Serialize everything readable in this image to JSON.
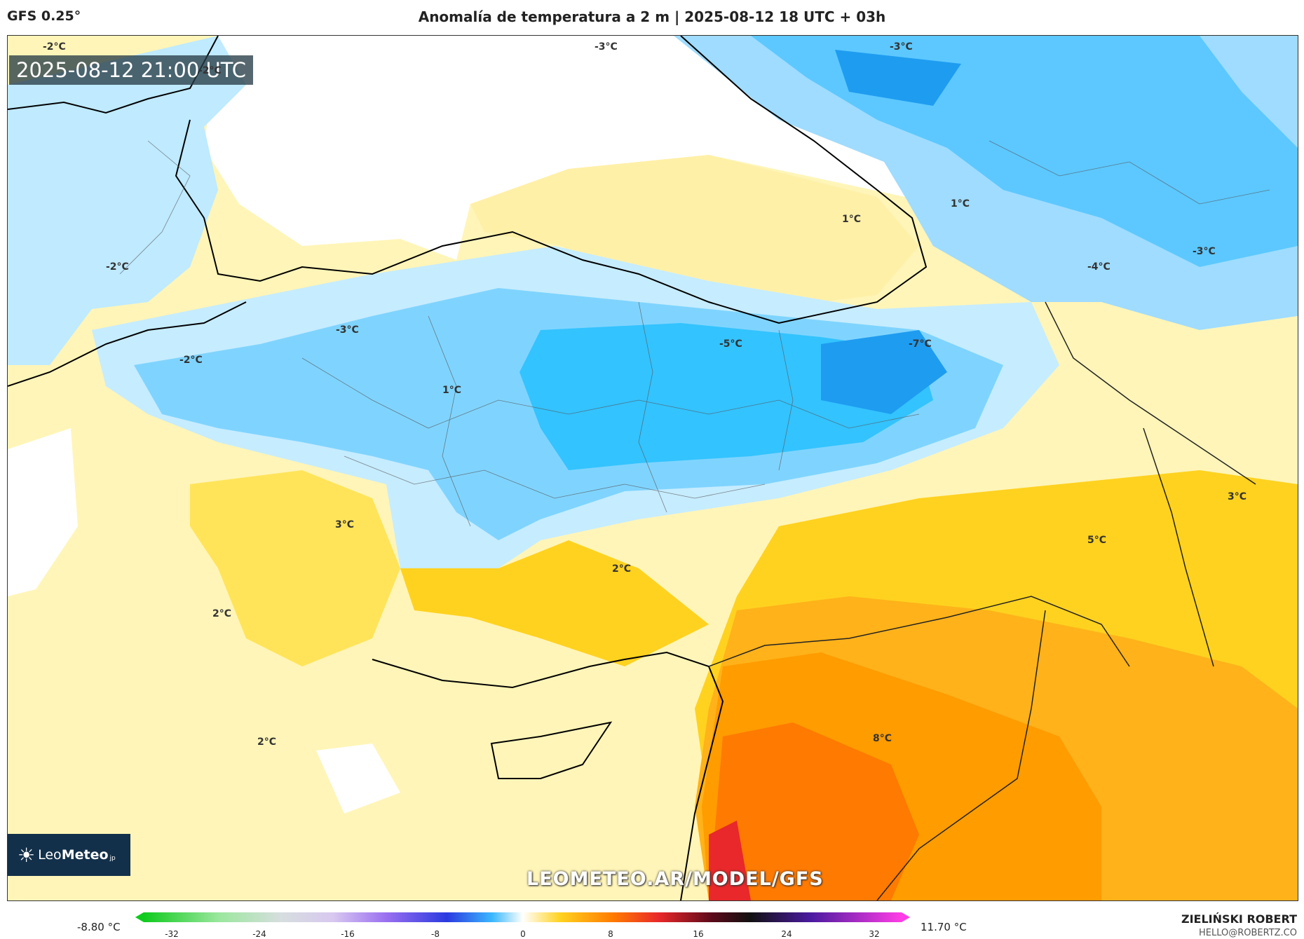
{
  "header": {
    "model": "GFS 0.25°",
    "title": "Anomalía de temperatura a 2 m | 2025-08-12 18 UTC + 03h"
  },
  "map": {
    "valid_time": "2025-08-12 21:00 UTC",
    "watermark": "LEOMETEO.AR/MODEL/GFS",
    "logo": {
      "light": "Leo",
      "bold": "Meteo",
      "suffix": "jp"
    },
    "contour_labels": [
      {
        "text": "-2°C"
      },
      {
        "text": "-2°C"
      },
      {
        "text": "-3°C"
      },
      {
        "text": "-3°C"
      },
      {
        "text": "1°C"
      },
      {
        "text": "1°C"
      },
      {
        "text": "-3°C"
      },
      {
        "text": "-4°C"
      },
      {
        "text": "-2°C"
      },
      {
        "text": "-3°C"
      },
      {
        "text": "-2°C"
      },
      {
        "text": "-5°C"
      },
      {
        "text": "-7°C"
      },
      {
        "text": "1°C"
      },
      {
        "text": "3°C"
      },
      {
        "text": "3°C"
      },
      {
        "text": "2°C"
      },
      {
        "text": "5°C"
      },
      {
        "text": "2°C"
      },
      {
        "text": "2°C"
      },
      {
        "text": "8°C"
      }
    ]
  },
  "legend": {
    "min": "-8.80 °C",
    "max": "11.70 °C",
    "ticks": [
      "-32",
      "-24",
      "-16",
      "-8",
      "0",
      "8",
      "16",
      "24",
      "32"
    ]
  },
  "credit": {
    "name": "ZIELIŃSKI ROBERT",
    "email": "HELLO@ROBERTZ.CO"
  },
  "colors": {
    "pale_yellow": "#fff5b8",
    "yellow": "#ffd21f",
    "orange": "#ff9c00",
    "red_orange": "#ff5a00",
    "light_blue": "#bfeaff",
    "blue": "#33c3ff",
    "deep_blue": "#0077ee"
  }
}
